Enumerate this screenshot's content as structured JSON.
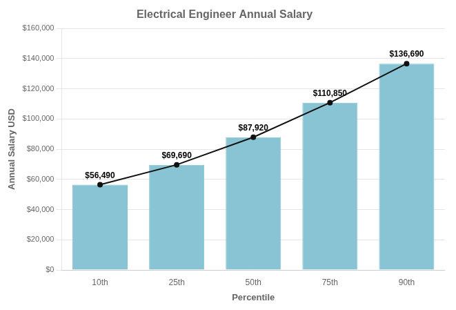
{
  "chart_data": {
    "type": "bar",
    "title": "Electrical Engineer Annual Salary",
    "xlabel": "Percentile",
    "ylabel": "Annual Salary USD",
    "categories": [
      "10th",
      "25th",
      "50th",
      "75th",
      "90th"
    ],
    "series": [
      {
        "type": "bar",
        "color": "#89c4d4",
        "values": [
          56490,
          69690,
          87920,
          110850,
          136690
        ],
        "value_labels": [
          "$56,490",
          "$69,690",
          "$87,920",
          "$110,850",
          "$136,690"
        ]
      },
      {
        "type": "line",
        "color": "#111111",
        "values": [
          56490,
          69690,
          87920,
          110850,
          136690
        ]
      }
    ],
    "data_labels": true,
    "ylim": [
      0,
      160000
    ],
    "yticks": [
      {
        "value": 0,
        "label": "$0"
      },
      {
        "value": 20000,
        "label": "$20,000"
      },
      {
        "value": 40000,
        "label": "$40,000"
      },
      {
        "value": 60000,
        "label": "$60,000"
      },
      {
        "value": 80000,
        "label": "$80,000"
      },
      {
        "value": 100000,
        "label": "$100,000"
      },
      {
        "value": 120000,
        "label": "$120,000"
      },
      {
        "value": 140000,
        "label": "$140,000"
      },
      {
        "value": 160000,
        "label": "$160,000"
      }
    ],
    "grid": true
  }
}
